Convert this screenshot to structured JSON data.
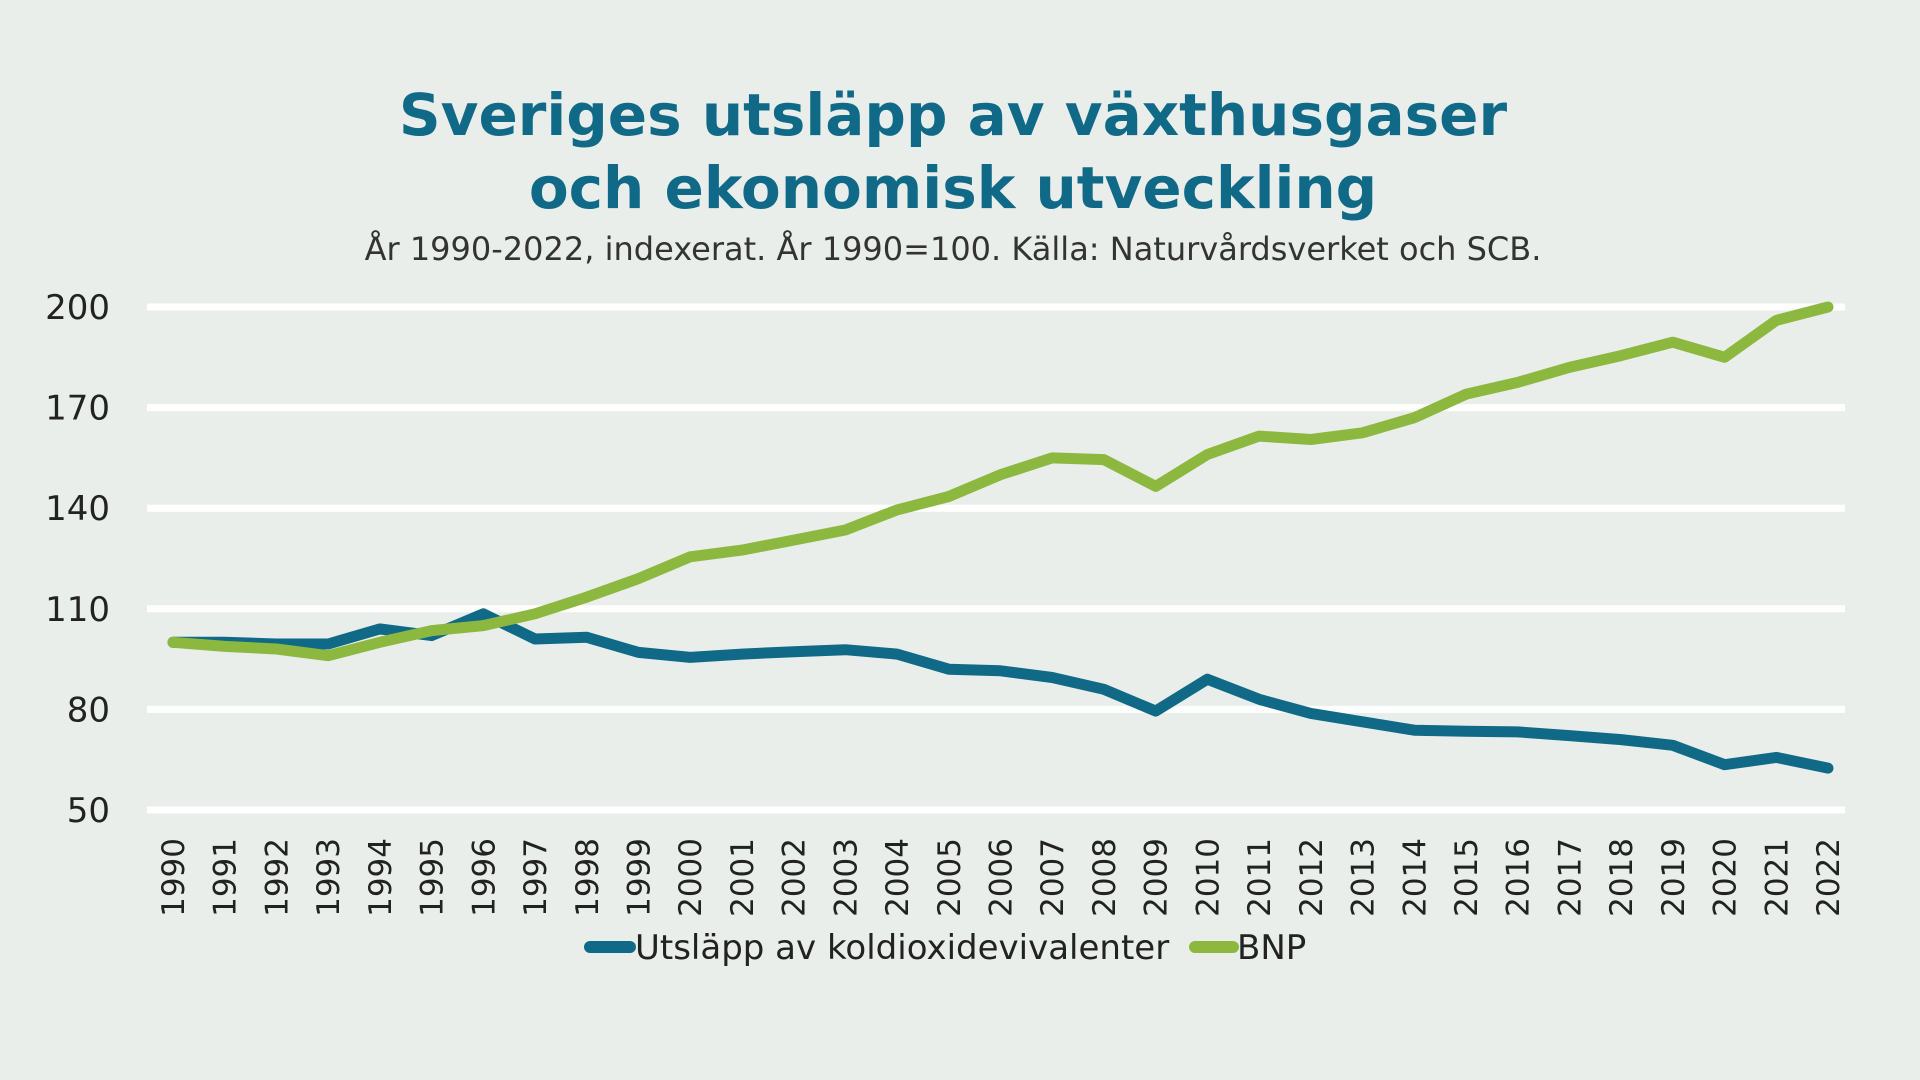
{
  "chart_data": {
    "type": "line",
    "title_lines": [
      "Sveriges utsläpp av växthusgaser",
      "och ekonomisk utveckling"
    ],
    "subtitle": "År 1990-2022, indexerat. År 1990=100. Källa: Naturvårdsverket och SCB.",
    "xlabel": "",
    "ylabel": "",
    "x": [
      "1990",
      "1991",
      "1992",
      "1993",
      "1994",
      "1995",
      "1996",
      "1997",
      "1998",
      "1999",
      "2000",
      "2001",
      "2002",
      "2003",
      "2004",
      "2005",
      "2006",
      "2007",
      "2008",
      "2009",
      "2010",
      "2011",
      "2012",
      "2013",
      "2014",
      "2015",
      "2016",
      "2017",
      "2018",
      "2019",
      "2020",
      "2021",
      "2022"
    ],
    "ylim": [
      50,
      200
    ],
    "yticks": [
      200,
      170,
      140,
      110,
      80,
      50
    ],
    "grid": true,
    "legend_position": "bottom",
    "series": [
      {
        "name": "Utsläpp av koldioxidevivalenter",
        "color": "#106a87",
        "values": [
          100,
          100,
          99.5,
          99.5,
          104,
          102,
          108.5,
          101,
          101.5,
          97,
          95.5,
          96.5,
          97.2,
          97.8,
          96.5,
          92,
          91.5,
          89.5,
          86,
          79.5,
          89,
          83,
          78.8,
          76.3,
          73.8,
          73.5,
          73.3,
          72.2,
          71,
          69.3,
          63.5,
          65.7,
          62.5
        ]
      },
      {
        "name": "BNP",
        "color": "#8db83f",
        "values": [
          100,
          98.8,
          98,
          96,
          100,
          103.5,
          105,
          108.5,
          113.5,
          119,
          125.5,
          127.5,
          130.5,
          133.5,
          139.5,
          143.5,
          150,
          155,
          154.5,
          146.5,
          156,
          161.5,
          160.5,
          162.5,
          167,
          174,
          177.5,
          182,
          185.5,
          189.5,
          185,
          196,
          200
        ]
      }
    ]
  }
}
